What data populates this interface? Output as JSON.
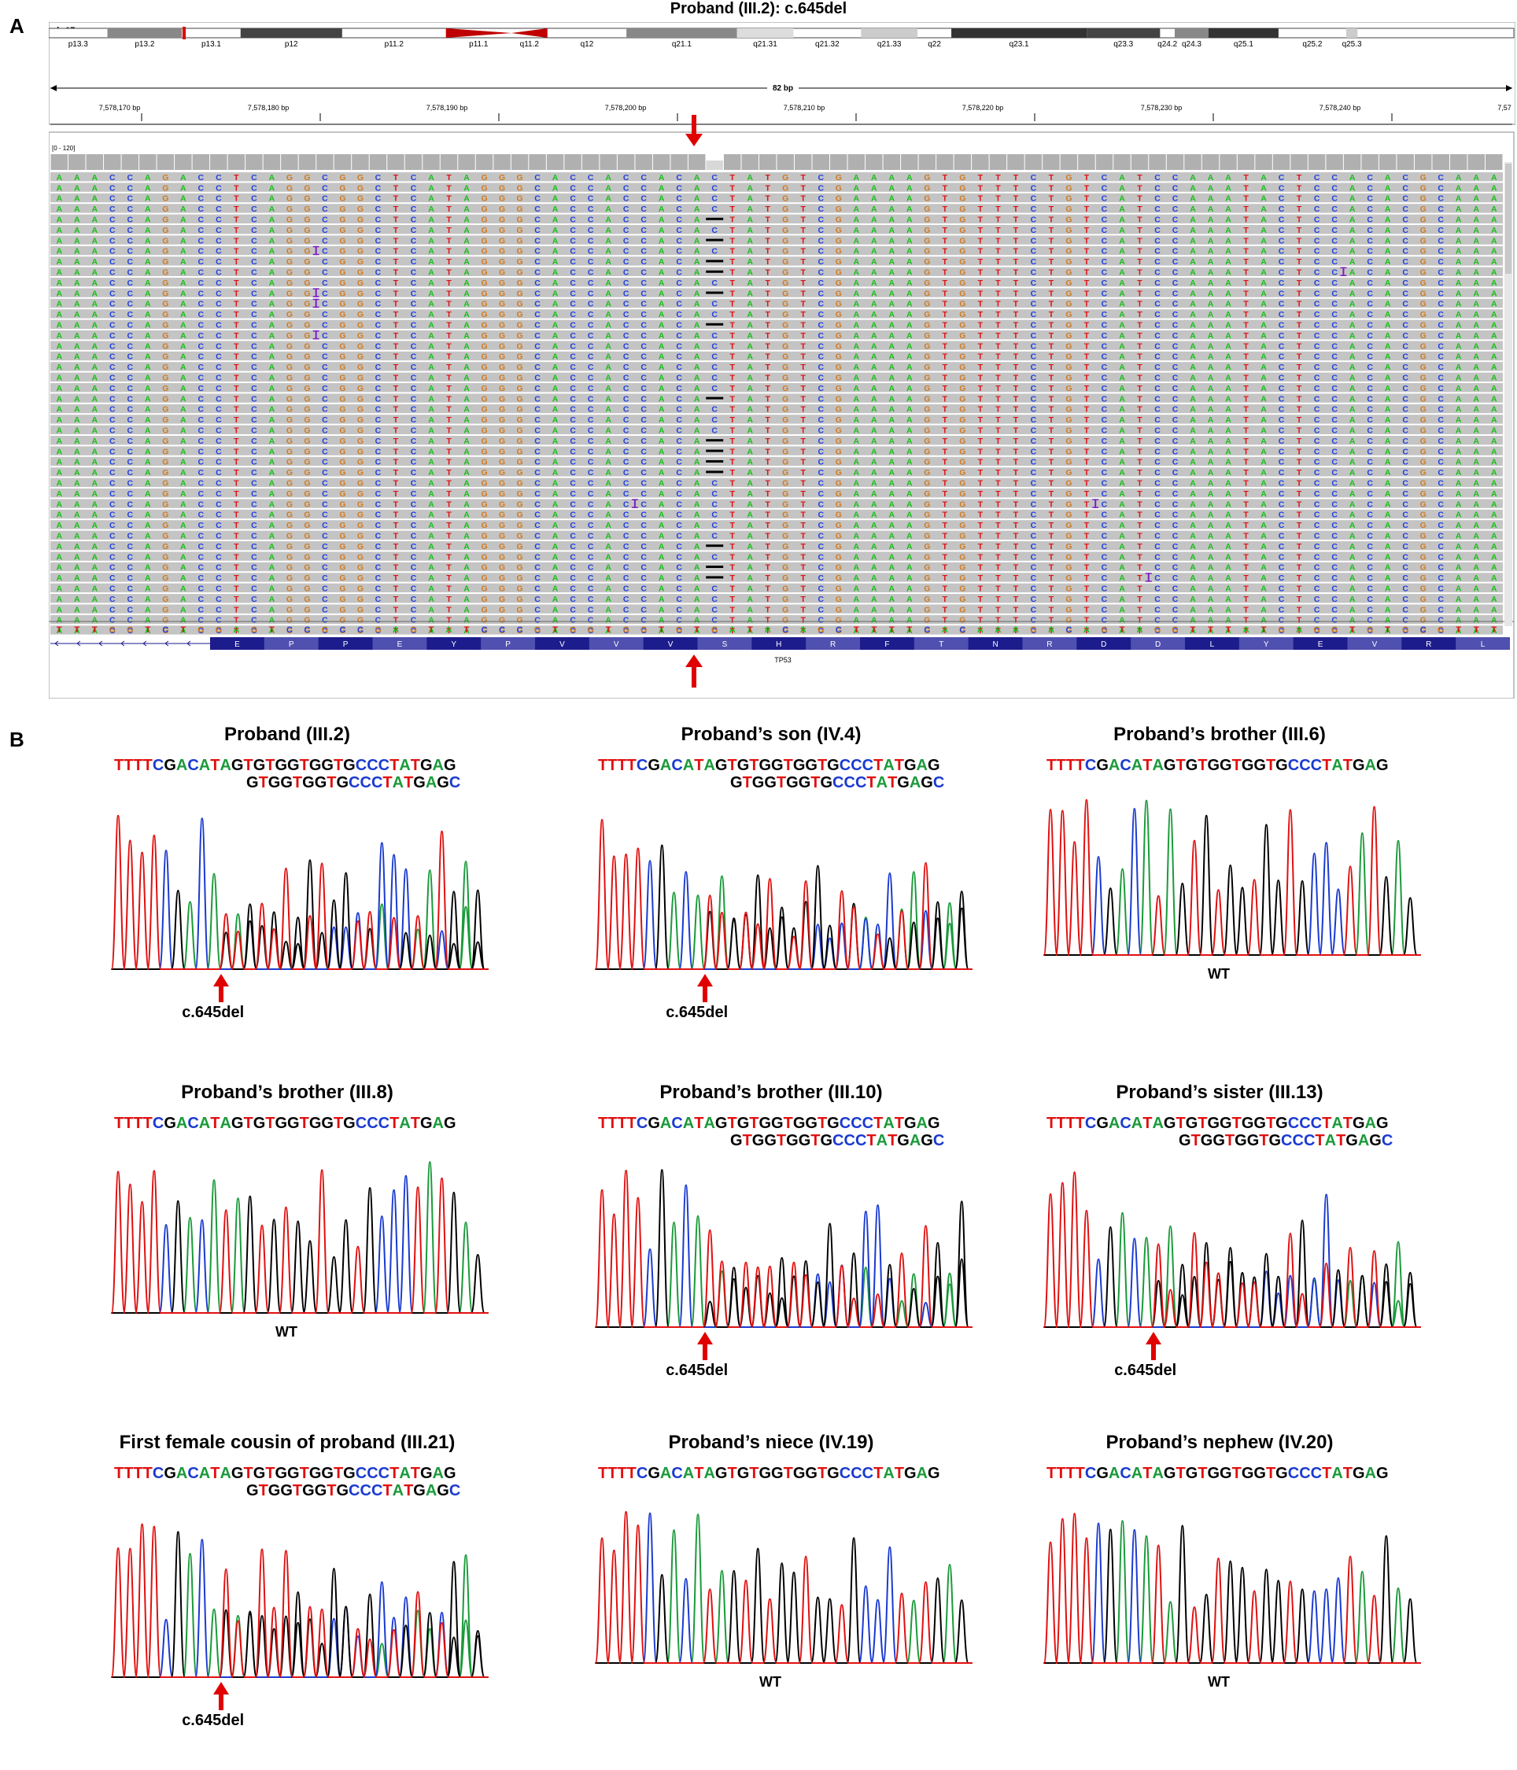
{
  "panel_a": {
    "letter": "A",
    "title": "Proband (III.2): c.645del",
    "chromosome": "chr17",
    "bands": [
      "p13.3",
      "p13.2",
      "p13.1",
      "p12",
      "p11.2",
      "p11.1",
      "q11.2",
      "q12",
      "q21.1",
      "q21.31",
      "q21.32",
      "q21.33",
      "q22",
      "q23.1",
      "q23.3",
      "q24.2",
      "q24.3",
      "q25.1",
      "q25.2",
      "q25.3"
    ],
    "span_label": "82 bp",
    "positions": [
      "7,578,170 bp",
      "7,578,180 bp",
      "7,578,190 bp",
      "7,578,200 bp",
      "7,578,210 bp",
      "7,578,220 bp",
      "7,578,230 bp",
      "7,578,240 bp",
      "7,57"
    ],
    "coverage_range": "[0 - 120]",
    "read_sequence": "AAACCAGACCTCAGGCGGCTCATAGGGCACCACCACACTATGTCGAAAAGTGTTTCTGTCATCCAAATACTCCACACGCAAA",
    "deletion_column": 37,
    "read_count": 44,
    "deletion_rows": [
      4,
      6,
      8,
      9,
      11,
      14,
      21,
      25,
      26,
      27,
      28,
      35,
      37,
      38
    ],
    "insertion_marks": [
      [
        7,
        15
      ],
      [
        11,
        15
      ],
      [
        12,
        15
      ],
      [
        15,
        15
      ],
      [
        31,
        33
      ],
      [
        31,
        59
      ],
      [
        9,
        73
      ],
      [
        38,
        62
      ]
    ],
    "reference_sequence": "TTTGGTCTGGAGTCCGCCGAGTATCCCGTGGTGGTGTGATACAGCTTTTCACAAAGACAGTAGGTTTATGAGGTGTGCGTTT",
    "amino_acids": [
      "E",
      "P",
      "P",
      "E",
      "Y",
      "P",
      "V",
      "V",
      "V",
      "S",
      "H",
      "R",
      "F",
      "T",
      "N",
      "R",
      "D",
      "D",
      "L",
      "Y",
      "E",
      "V",
      "R",
      "L"
    ],
    "gene": "TP53"
  },
  "panel_b": {
    "letter": "B",
    "top_sequence": "TTTTCGACATAGTGTGGTGGTGCCCTATGAG",
    "shifted_sequence": "GTGGTGGTGCCCTATGAGC",
    "colors": {
      "A": "#1a9a3a",
      "C": "#1a3ad0",
      "G": "#000000",
      "T": "#e01010"
    },
    "traces": [
      {
        "title": "Proband (III.2)",
        "status": "c.645del",
        "het": true
      },
      {
        "title": "Proband’s son (IV.4)",
        "status": "c.645del",
        "het": true
      },
      {
        "title": "Proband’s brother (III.6)",
        "status": "WT",
        "het": false
      },
      {
        "title": "Proband’s brother (III.8)",
        "status": "WT",
        "het": false
      },
      {
        "title": "Proband’s brother (III.10)",
        "status": "c.645del",
        "het": true
      },
      {
        "title": "Proband’s sister (III.13)",
        "status": "c.645del",
        "het": true
      },
      {
        "title": "First female cousin of proband (III.21)",
        "status": "c.645del",
        "het": true
      },
      {
        "title": "Proband’s niece (IV.19)",
        "status": "WT",
        "het": false
      },
      {
        "title": "Proband’s nephew (IV.20)",
        "status": "WT",
        "het": false
      }
    ]
  }
}
